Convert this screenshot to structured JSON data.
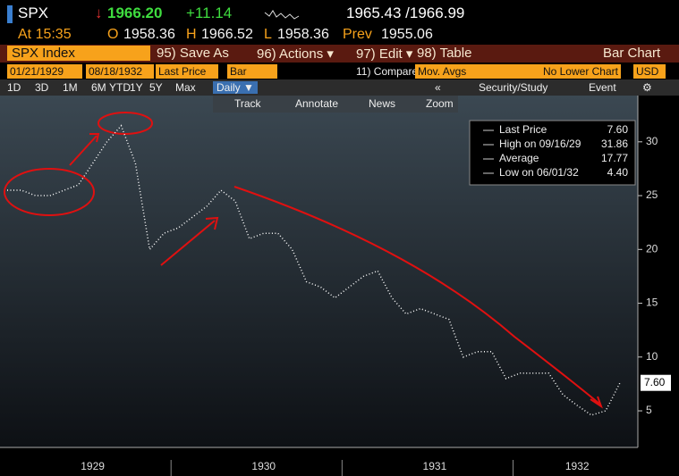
{
  "header": {
    "ticker": "SPX",
    "direction": "↓",
    "last": "1966.20",
    "change": "+11.14",
    "bid_ask": "1965.43 /1966.99",
    "time": "At 15:35",
    "open_label": "O",
    "open": "1958.36",
    "high_label": "H",
    "high": "1966.52",
    "low_label": "L",
    "low": "1958.36",
    "prev_label": "Prev",
    "prev": "1955.06"
  },
  "toolbar": {
    "security": "SPX Index",
    "save": "95) Save As",
    "actions": "96) Actions ▾",
    "edit": "97) Edit ▾",
    "table": "98) Table",
    "chart_type": "Bar Chart"
  },
  "settings": {
    "start": "01/21/1929",
    "end": "08/18/1932",
    "field": "Last Price",
    "style": "Bar",
    "compare": "11) Compare",
    "mov_avgs": "Mov. Avgs",
    "lower": "No Lower Chart",
    "currency": "USD"
  },
  "periods": {
    "buttons": [
      "1D",
      "3D",
      "1M",
      "6M",
      "YTD",
      "1Y",
      "5Y",
      "Max"
    ],
    "frequency": "Daily ▼",
    "collapse": "«",
    "study": "Security/Study",
    "event": "Event",
    "settings": "⚙"
  },
  "chart_tools": [
    "Track",
    "Annotate",
    "News",
    "Zoom"
  ],
  "chart_data": {
    "type": "line",
    "categories": [
      null,
      null,
      null,
      null,
      null,
      null,
      "1929",
      null,
      null,
      null,
      null,
      null,
      null,
      null,
      null,
      null,
      null,
      null,
      "1930",
      null,
      null,
      null,
      null,
      null,
      null,
      null,
      null,
      null,
      null,
      null,
      "1931",
      null,
      null,
      null,
      null,
      null,
      null,
      null,
      null,
      null,
      "1932",
      null,
      null,
      null
    ],
    "series": [
      {
        "name": "Last Price",
        "color": "#ffffff",
        "values": [
          25.5,
          25.5,
          25,
          25,
          25.5,
          26,
          28,
          30,
          31.5,
          28,
          20,
          21.5,
          22,
          23,
          24,
          25.5,
          24.5,
          21,
          21.5,
          21.5,
          20,
          17,
          16.5,
          15.5,
          16.5,
          17.5,
          18,
          15.5,
          14,
          14.5,
          14,
          13.5,
          10,
          10.5,
          10.5,
          8,
          8.5,
          8.5,
          8.5,
          6.5,
          5.5,
          4.6,
          5,
          7.6
        ]
      }
    ],
    "ylim": [
      1.6,
      34.3
    ],
    "yticks": [
      5,
      10,
      15,
      20,
      25,
      30
    ],
    "last_value": {
      "value": 7.6,
      "label": "7.60"
    },
    "legend": [
      {
        "name": "Last Price",
        "value": "7.60"
      },
      {
        "name": "High on 09/16/29",
        "value": "31.86"
      },
      {
        "name": "Average",
        "value": "17.77"
      },
      {
        "name": "Low on 06/01/32",
        "value": "4.40"
      }
    ]
  }
}
